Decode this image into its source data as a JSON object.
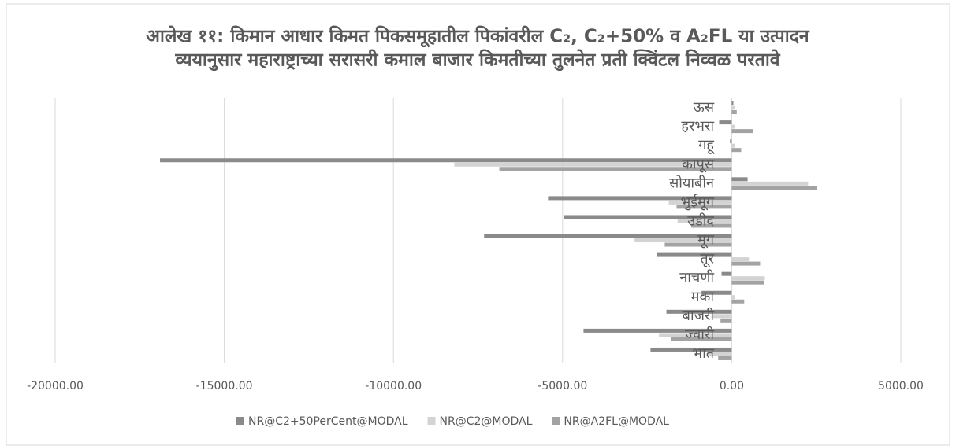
{
  "chart_data": {
    "type": "barh",
    "title": [
      "आलेख ११: किमान आधार किमत पिकसमूहातील पिकांवरील C₂, C₂+50%  व A₂FL या उत्पादन",
      "व्ययानुसार महाराष्ट्राच्या सरासरी कमाल बाजार किमतीच्या तुलनेत प्रती क्विंटल निव्वळ परतावे"
    ],
    "categories": [
      "भात",
      "ज्वारी",
      "बाजरी",
      "मका",
      "नाचणी",
      "तूर",
      "मूग",
      "उडीद",
      "भुईमूग",
      "सोयाबीन",
      "कापूस",
      "गहू",
      "हरभरा",
      "ऊस"
    ],
    "series": [
      {
        "name": "NR@C2+50PerCent@MODAL",
        "color": "#8a8a8a",
        "values": [
          -2400,
          -4380,
          -1930,
          -890,
          -300,
          -2210,
          -7320,
          -4960,
          -5430,
          470,
          -16900,
          -50,
          -370,
          50
        ]
      },
      {
        "name": "NR@C2@MODAL",
        "color": "#d3d3d3",
        "values": [
          -700,
          -2150,
          -600,
          100,
          980,
          510,
          -2870,
          -1600,
          -1860,
          2260,
          -8200,
          100,
          100,
          100
        ]
      },
      {
        "name": "NR@A2FL@MODAL",
        "color": "#a3a3a3",
        "values": [
          -400,
          -1800,
          -330,
          370,
          950,
          840,
          -1980,
          -1200,
          -1630,
          2520,
          -6870,
          280,
          630,
          150
        ]
      }
    ],
    "xlim": [
      -20000,
      5000
    ],
    "xticks": [
      {
        "value": -20000,
        "label": "-20000.00"
      },
      {
        "value": -15000,
        "label": "-15000.00"
      },
      {
        "value": -10000,
        "label": "-10000.00"
      },
      {
        "value": -5000,
        "label": "-5000.00"
      },
      {
        "value": 0,
        "label": "0.00"
      },
      {
        "value": 5000,
        "label": "5000.00"
      }
    ],
    "grid": true,
    "legend": "bottom"
  }
}
